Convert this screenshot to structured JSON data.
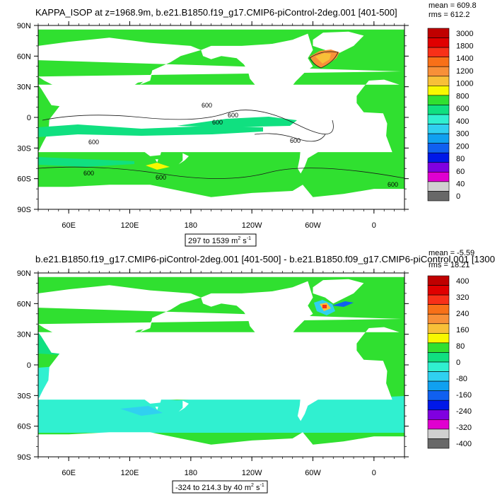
{
  "colors": {
    "land": "#ffffff",
    "frame": "#000000",
    "contour": "#1a1a1a"
  },
  "chart_data": [
    {
      "type": "heatmap",
      "title": "KAPPA_ISOP at z=1968.9m, b.e21.B1850.f19_g17.CMIP6-piControl-2deg.001 [401-500]",
      "stats": [
        "mean = 609.8",
        "rms = 612.2"
      ],
      "range_label": "297 to 1539 m",
      "range_unit_sup": "2",
      "range_unit_tail": " s",
      "range_unit_exp": "-1",
      "x_tick_labels": [
        "60E",
        "120E",
        "180",
        "120W",
        "60W",
        "0"
      ],
      "y_tick_labels": [
        "90N",
        "60N",
        "30N",
        "0",
        "30S",
        "60S",
        "90S"
      ],
      "xlim": [
        30,
        390
      ],
      "ylim": [
        -90,
        90
      ],
      "dominant_level": "600",
      "colorbar": {
        "labels": [
          "3000",
          "1800",
          "1400",
          "1200",
          "1000",
          "800",
          "600",
          "400",
          "300",
          "200",
          "80",
          "60",
          "40",
          "0"
        ],
        "colors": [
          "#c00000",
          "#e00000",
          "#f83018",
          "#f87018",
          "#f89038",
          "#f8c038",
          "#f8f800",
          "#30e030",
          "#10e080",
          "#30f0d0",
          "#30d0f0",
          "#10a0f0",
          "#1060f0",
          "#0018e8",
          "#8000e0",
          "#e000d0",
          "#d0d0d0",
          "#686868"
        ]
      },
      "contour_labels": [
        "600",
        "600",
        "600",
        "600",
        "600",
        "600",
        "600",
        "600"
      ]
    },
    {
      "type": "heatmap",
      "title": "b.e21.B1850.f19_g17.CMIP6-piControl-2deg.001 [401-500] - b.e21.B1850.f09_g17.CMIP6-piControl.001 [1300",
      "stats": [
        "mean = -5.59",
        "rms = 18.21"
      ],
      "range_label": "-324 to 214.3 by 40 m",
      "range_unit_sup": "2",
      "range_unit_tail": " s",
      "range_unit_exp": "-1",
      "x_tick_labels": [
        "60E",
        "120E",
        "180",
        "120W",
        "60W",
        "0"
      ],
      "y_tick_labels": [
        "90N",
        "60N",
        "30N",
        "0",
        "30S",
        "60S",
        "90S"
      ],
      "xlim": [
        30,
        390
      ],
      "ylim": [
        -90,
        90
      ],
      "dominant_level": "0",
      "colorbar": {
        "labels": [
          "400",
          "320",
          "240",
          "160",
          "80",
          "0",
          "-80",
          "-160",
          "-240",
          "-320",
          "-400"
        ],
        "colors": [
          "#c00000",
          "#e00000",
          "#f83018",
          "#f87018",
          "#f89038",
          "#f8c038",
          "#f8f800",
          "#30e030",
          "#10e080",
          "#30f0d0",
          "#30d0f0",
          "#10a0f0",
          "#1060f0",
          "#0018e8",
          "#8000e0",
          "#e000d0",
          "#d0d0d0",
          "#686868"
        ]
      }
    }
  ]
}
